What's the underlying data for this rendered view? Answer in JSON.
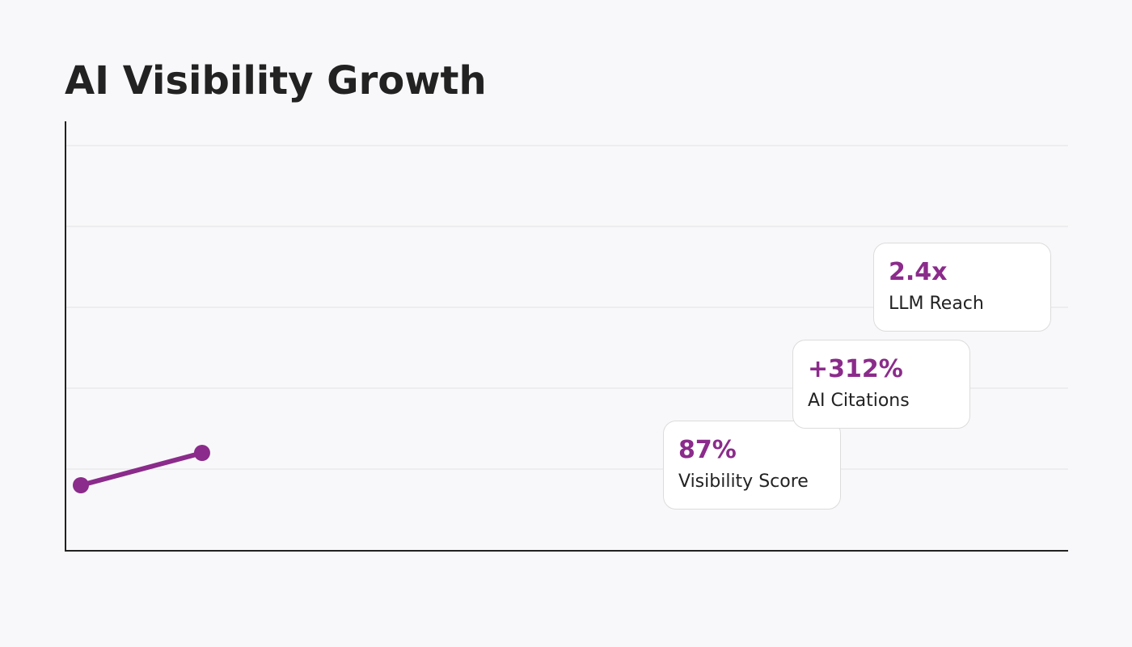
{
  "chart_data": {
    "type": "line",
    "title": "AI Visibility Growth",
    "xlabel": "",
    "ylabel": "",
    "grid": true,
    "x": [
      0,
      1
    ],
    "series": [
      {
        "values": [
          0.8,
          1.2
        ],
        "color": "#8b2b8b"
      }
    ],
    "xlim": [
      0,
      8.27
    ],
    "ylim": [
      0,
      5
    ]
  },
  "cards": [
    {
      "value": "87%",
      "label": "Visibility Score"
    },
    {
      "value": "+312%",
      "label": "AI Citations"
    },
    {
      "value": "2.4x",
      "label": "LLM Reach"
    }
  ],
  "colors": {
    "accent": "#8b2b8b",
    "text": "#222222",
    "background": "#f8f8fa"
  }
}
